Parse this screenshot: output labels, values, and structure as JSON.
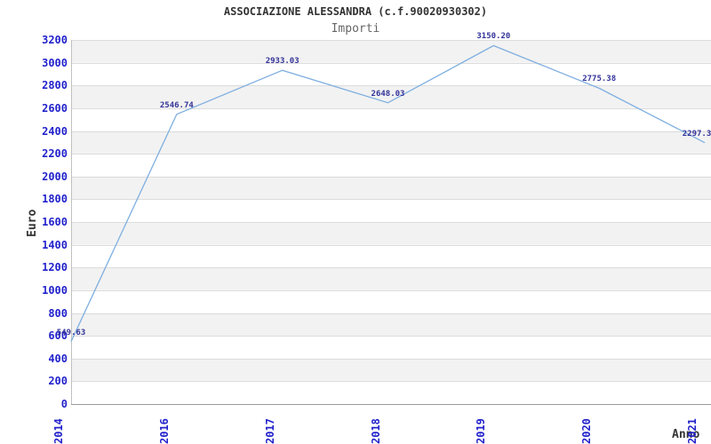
{
  "chart_data": {
    "type": "line",
    "title": "ASSOCIAZIONE ALESSANDRA (c.f.90020930302)",
    "subtitle": "Importi",
    "xlabel": "Anno",
    "ylabel": "Euro",
    "categories": [
      "2014",
      "2016",
      "2017",
      "2018",
      "2019",
      "2020",
      "2021"
    ],
    "values": [
      549.63,
      2546.74,
      2933.03,
      2648.03,
      3150.2,
      2775.38,
      2297.3
    ],
    "point_labels": [
      "549.63",
      "2546.74",
      "2933.03",
      "2648.03",
      "3150.20",
      "2775.38",
      "2297.3"
    ],
    "ylim": [
      0,
      3200
    ],
    "ytick_step": 200,
    "grid": "horizontal gridlines with alternating shaded bands",
    "legend": "none",
    "colors": {
      "line": "#7fafe0",
      "tick_label": "#2222cc",
      "point_label": "#333399",
      "band": "#f2f2f2",
      "gridline": "#dcdcdc",
      "bottom_axis": "#999999",
      "left_border": "#c0c0c0",
      "title": "#333333",
      "subtitle": "#666666",
      "axis_title": "#333333",
      "background": "#ffffff"
    }
  }
}
